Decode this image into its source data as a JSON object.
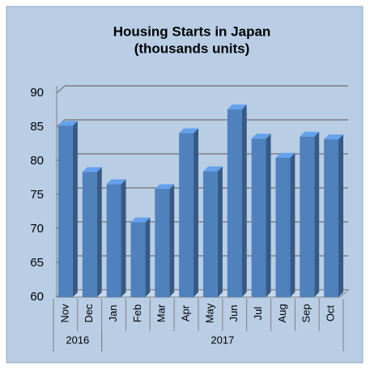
{
  "chart_data": {
    "type": "bar",
    "title": "Housing Starts in Japan",
    "subtitle": "(thousands units)",
    "categories": [
      "Nov",
      "Dec",
      "Jan",
      "Feb",
      "Mar",
      "Apr",
      "May",
      "Jun",
      "Jul",
      "Aug",
      "Sep",
      "Oct"
    ],
    "years": [
      "2016",
      null,
      "2017",
      null,
      null,
      null,
      null,
      null,
      null,
      null,
      null,
      null
    ],
    "values": [
      85.2,
      78.4,
      76.6,
      71,
      75.9,
      84.1,
      78.5,
      87.6,
      83.3,
      80.5,
      83.6,
      83.2
    ],
    "color": "#4f81bd",
    "ylim": [
      60,
      90
    ],
    "yticks": [
      60,
      65,
      70,
      75,
      80,
      85,
      90
    ],
    "grid": true
  }
}
